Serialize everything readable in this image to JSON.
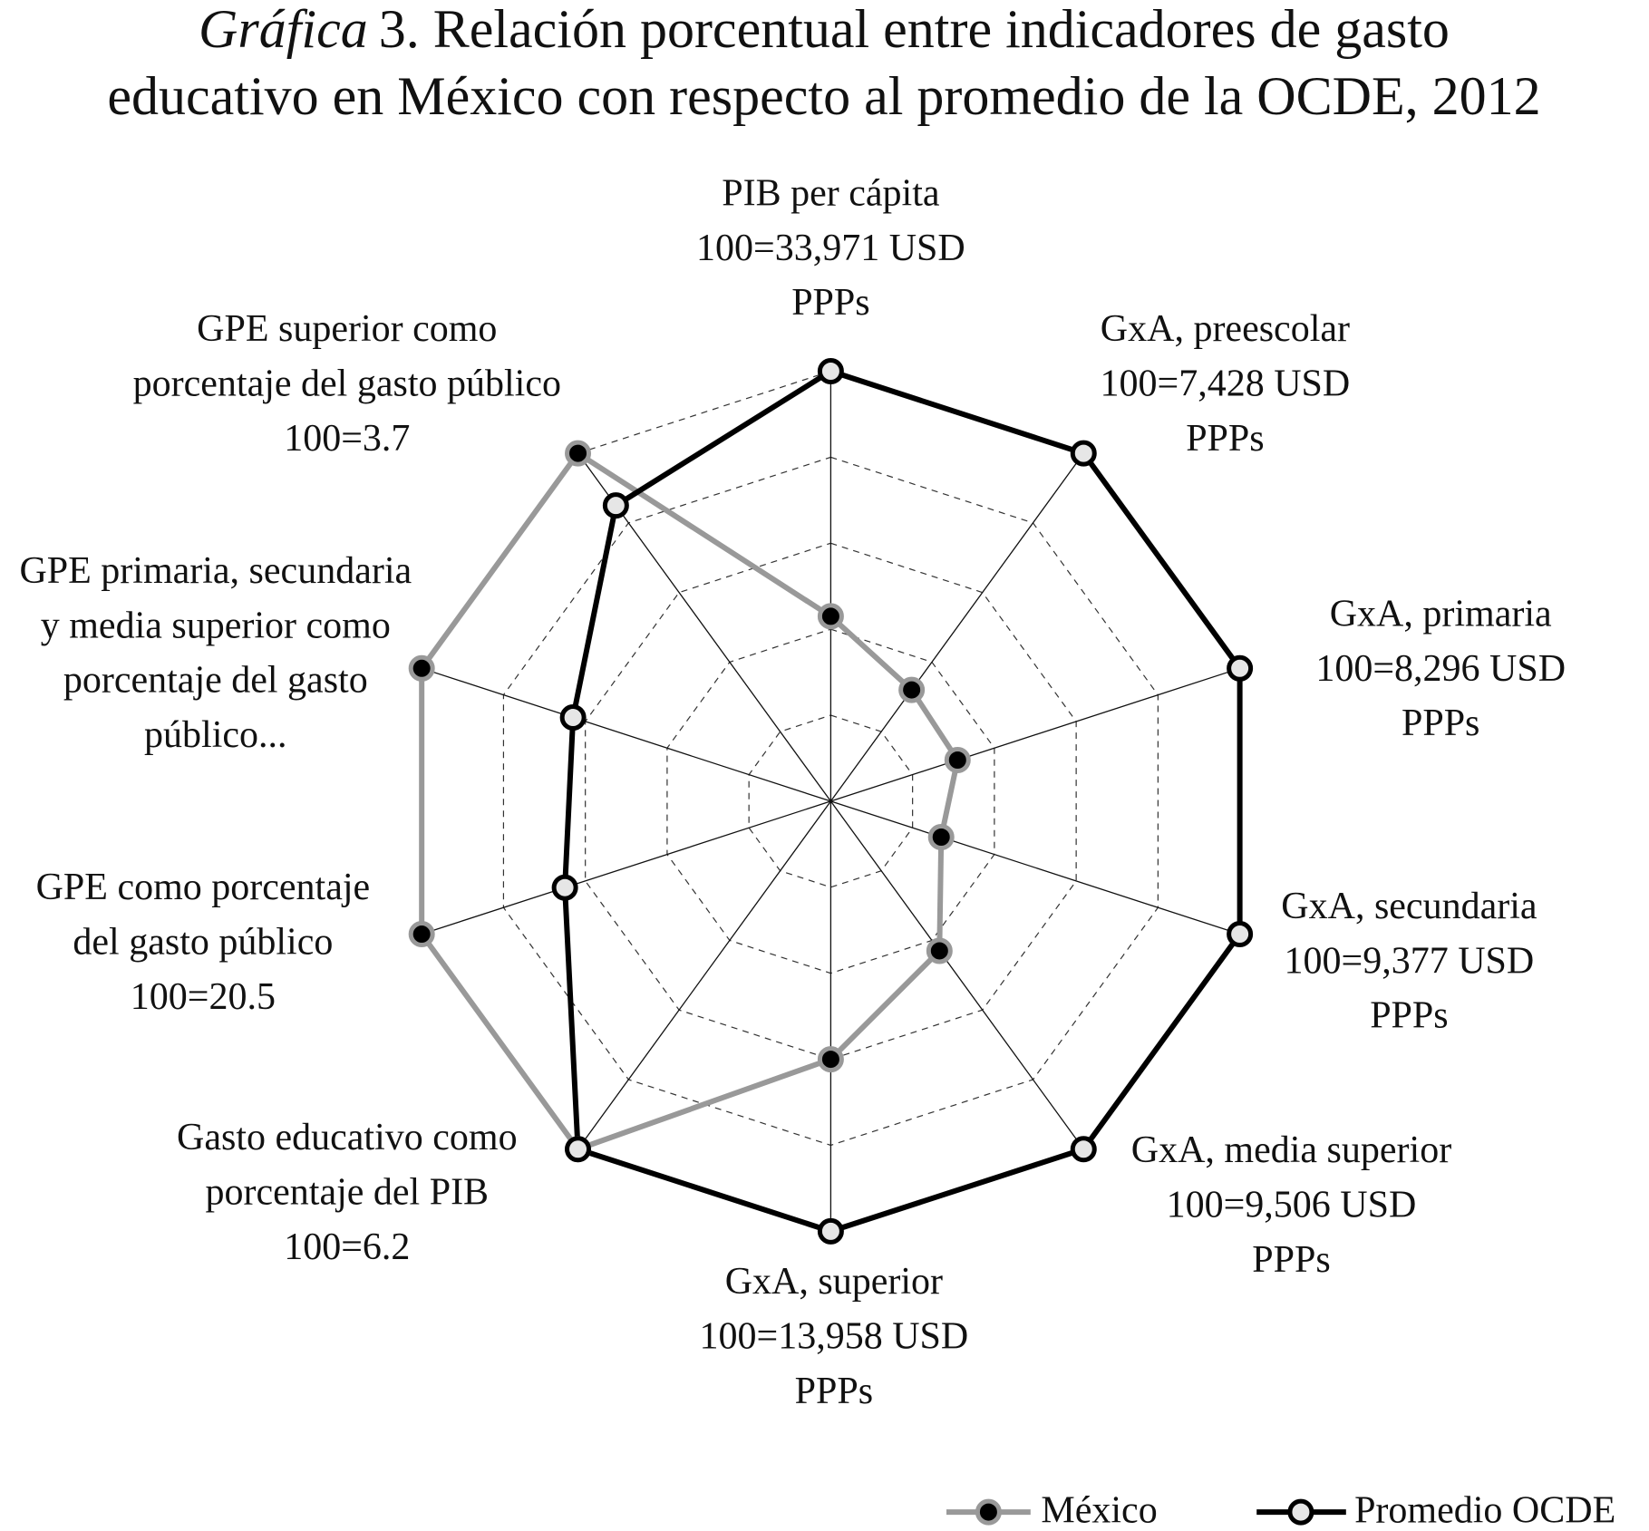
{
  "chart_data": {
    "type": "radar",
    "title_prefix": "Gráfica",
    "title": [
      "3. Relación porcentual entre indicadores de gasto",
      "educativo en México con respecto al promedio de la OCDE, 2012"
    ],
    "categories": [
      [
        "PIB per cápita",
        "100=33,971 USD",
        "PPPs"
      ],
      [
        "GxA, preescolar",
        "100=7,428 USD",
        "PPPs"
      ],
      [
        "GxA, primaria",
        "100=8,296 USD",
        "PPPs"
      ],
      [
        "GxA, secundaria",
        "100=9,377 USD",
        "PPPs"
      ],
      [
        "GxA, media superior",
        "100=9,506 USD",
        "PPPs"
      ],
      [
        "GxA, superior",
        "100=13,958 USD",
        "PPPs"
      ],
      [
        "Gasto educativo como",
        "porcentaje del PIB",
        "100=6.2"
      ],
      [
        "GPE como porcentaje",
        "del gasto público",
        "100=20.5"
      ],
      [
        "GPE primaria, secundaria",
        "y media superior como",
        "porcentaje del gasto",
        "público..."
      ],
      [
        "GPE superior como",
        "porcentaje del gasto público",
        "100=3.7"
      ]
    ],
    "series": [
      {
        "name": "México",
        "color": "#999999",
        "values": [
          43,
          32,
          31,
          27,
          43,
          60,
          100,
          100,
          100,
          100
        ]
      },
      {
        "name": "Promedio OCDE",
        "color": "#000000",
        "values": [
          100,
          100,
          100,
          100,
          100,
          100,
          100,
          65,
          63,
          85
        ]
      }
    ],
    "rlim": [
      0,
      100
    ],
    "rticks": [
      20,
      40,
      60,
      80,
      100
    ],
    "grid": true
  }
}
